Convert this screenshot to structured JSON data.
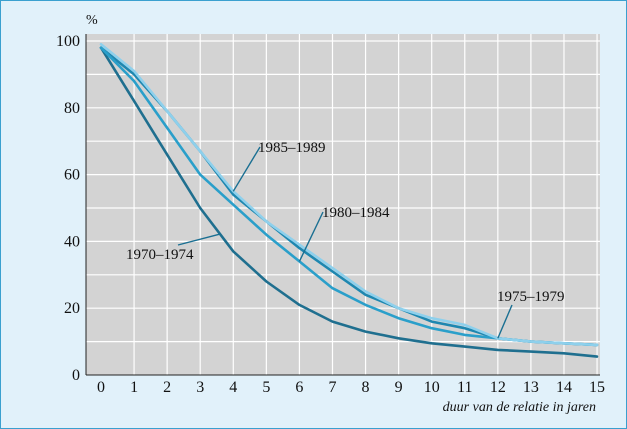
{
  "chart_data": {
    "type": "line",
    "title": "",
    "ylabel": "%",
    "xlabel": "duur van de relatie in jaren",
    "xlim": [
      0,
      15
    ],
    "ylim": [
      0,
      100
    ],
    "x_ticks": [
      0,
      1,
      2,
      3,
      4,
      5,
      6,
      7,
      8,
      9,
      10,
      11,
      12,
      13,
      14,
      15
    ],
    "y_ticks": [
      0,
      20,
      40,
      60,
      80,
      100
    ],
    "grid": true,
    "legend": "none",
    "background_color": "#e1f1fa",
    "plot_background": "#d3d3d3",
    "grid_color": "#ffffff",
    "x": [
      0,
      1,
      2,
      3,
      4,
      5,
      6,
      7,
      8,
      9,
      10,
      11,
      12,
      13,
      14,
      15
    ],
    "series": [
      {
        "name": "1970–1974",
        "color": "#1f6f8f",
        "values": [
          98,
          82,
          66,
          50,
          37,
          28,
          21,
          16,
          13,
          11,
          9.5,
          8.5,
          7.5,
          7,
          6.5,
          5.5
        ]
      },
      {
        "name": "1975–1979",
        "color": "#1e87b0",
        "values": [
          98,
          90,
          79,
          67,
          54,
          46,
          38,
          31,
          24,
          20,
          16,
          14,
          11,
          10,
          9.5,
          9
        ]
      },
      {
        "name": "1980–1984",
        "color": "#2a9fca",
        "values": [
          98,
          88,
          74,
          60,
          51,
          42,
          34,
          26,
          21,
          17,
          14,
          12,
          11,
          10,
          9.5,
          9
        ]
      },
      {
        "name": "1985–1989",
        "color": "#8ed0ec",
        "values": [
          99,
          91,
          79,
          67,
          55,
          46,
          39,
          32,
          25,
          20,
          17,
          15,
          11,
          10,
          9.5,
          9
        ]
      }
    ],
    "annotations": [
      {
        "text": "1985–1989",
        "series": "1985–1989"
      },
      {
        "text": "1980–1984",
        "series": "1980–1984"
      },
      {
        "text": "1970–1974",
        "series": "1970–1974"
      },
      {
        "text": "1975–1979",
        "series": "1975–1979"
      }
    ]
  }
}
